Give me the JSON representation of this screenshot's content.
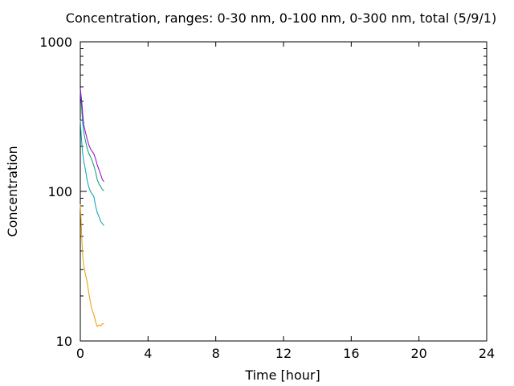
{
  "chart_data": {
    "type": "line",
    "title": "Concentration, ranges: 0-30 nm, 0-100 nm, 0-300 nm, total (5/9/1)",
    "xlabel": "Time [hour]",
    "ylabel": "Concentration",
    "xlim": [
      0,
      24
    ],
    "ylim": [
      10,
      1000
    ],
    "yscale": "log",
    "grid": false,
    "x_ticks": [
      0,
      4,
      8,
      12,
      16,
      20,
      24
    ],
    "x_tick_labels": [
      "0",
      "4",
      "8",
      "12",
      "16",
      "20",
      "24"
    ],
    "y_ticks": [
      10,
      100,
      1000
    ],
    "y_tick_labels": [
      "10",
      "100",
      "1000"
    ],
    "series": [
      {
        "color": "#e69f00",
        "x": [
          0,
          0.05,
          0.1,
          0.15,
          0.2,
          0.3,
          0.4,
          0.5,
          0.6,
          0.7,
          0.8,
          0.9,
          1.0,
          1.1,
          1.2,
          1.3,
          1.4
        ],
        "y": [
          82,
          62,
          45,
          36,
          32,
          28,
          25,
          21,
          18,
          16,
          15,
          13.5,
          12.5,
          12.8,
          12.6,
          13.0,
          13.0
        ]
      },
      {
        "color": "#00a0b0",
        "x": [
          0,
          0.05,
          0.1,
          0.15,
          0.2,
          0.3,
          0.4,
          0.5,
          0.6,
          0.7,
          0.8,
          0.9,
          1.0,
          1.1,
          1.2,
          1.3,
          1.4
        ],
        "y": [
          300,
          240,
          200,
          175,
          160,
          140,
          120,
          107,
          100,
          96,
          92,
          80,
          72,
          68,
          63,
          61,
          59
        ]
      },
      {
        "color": "#009e73",
        "x": [
          0,
          0.05,
          0.1,
          0.15,
          0.2,
          0.3,
          0.4,
          0.5,
          0.6,
          0.7,
          0.8,
          0.9,
          1.0,
          1.1,
          1.2,
          1.3,
          1.4
        ],
        "y": [
          470,
          400,
          330,
          280,
          250,
          220,
          195,
          180,
          170,
          160,
          148,
          135,
          120,
          112,
          108,
          103,
          101
        ]
      },
      {
        "color": "#9400d3",
        "x": [
          0,
          0.05,
          0.1,
          0.15,
          0.2,
          0.3,
          0.4,
          0.5,
          0.6,
          0.7,
          0.8,
          0.9,
          1.0,
          1.1,
          1.2,
          1.3,
          1.4
        ],
        "y": [
          490,
          430,
          380,
          320,
          280,
          250,
          225,
          205,
          192,
          185,
          178,
          165,
          150,
          140,
          130,
          120,
          116
        ]
      }
    ]
  }
}
